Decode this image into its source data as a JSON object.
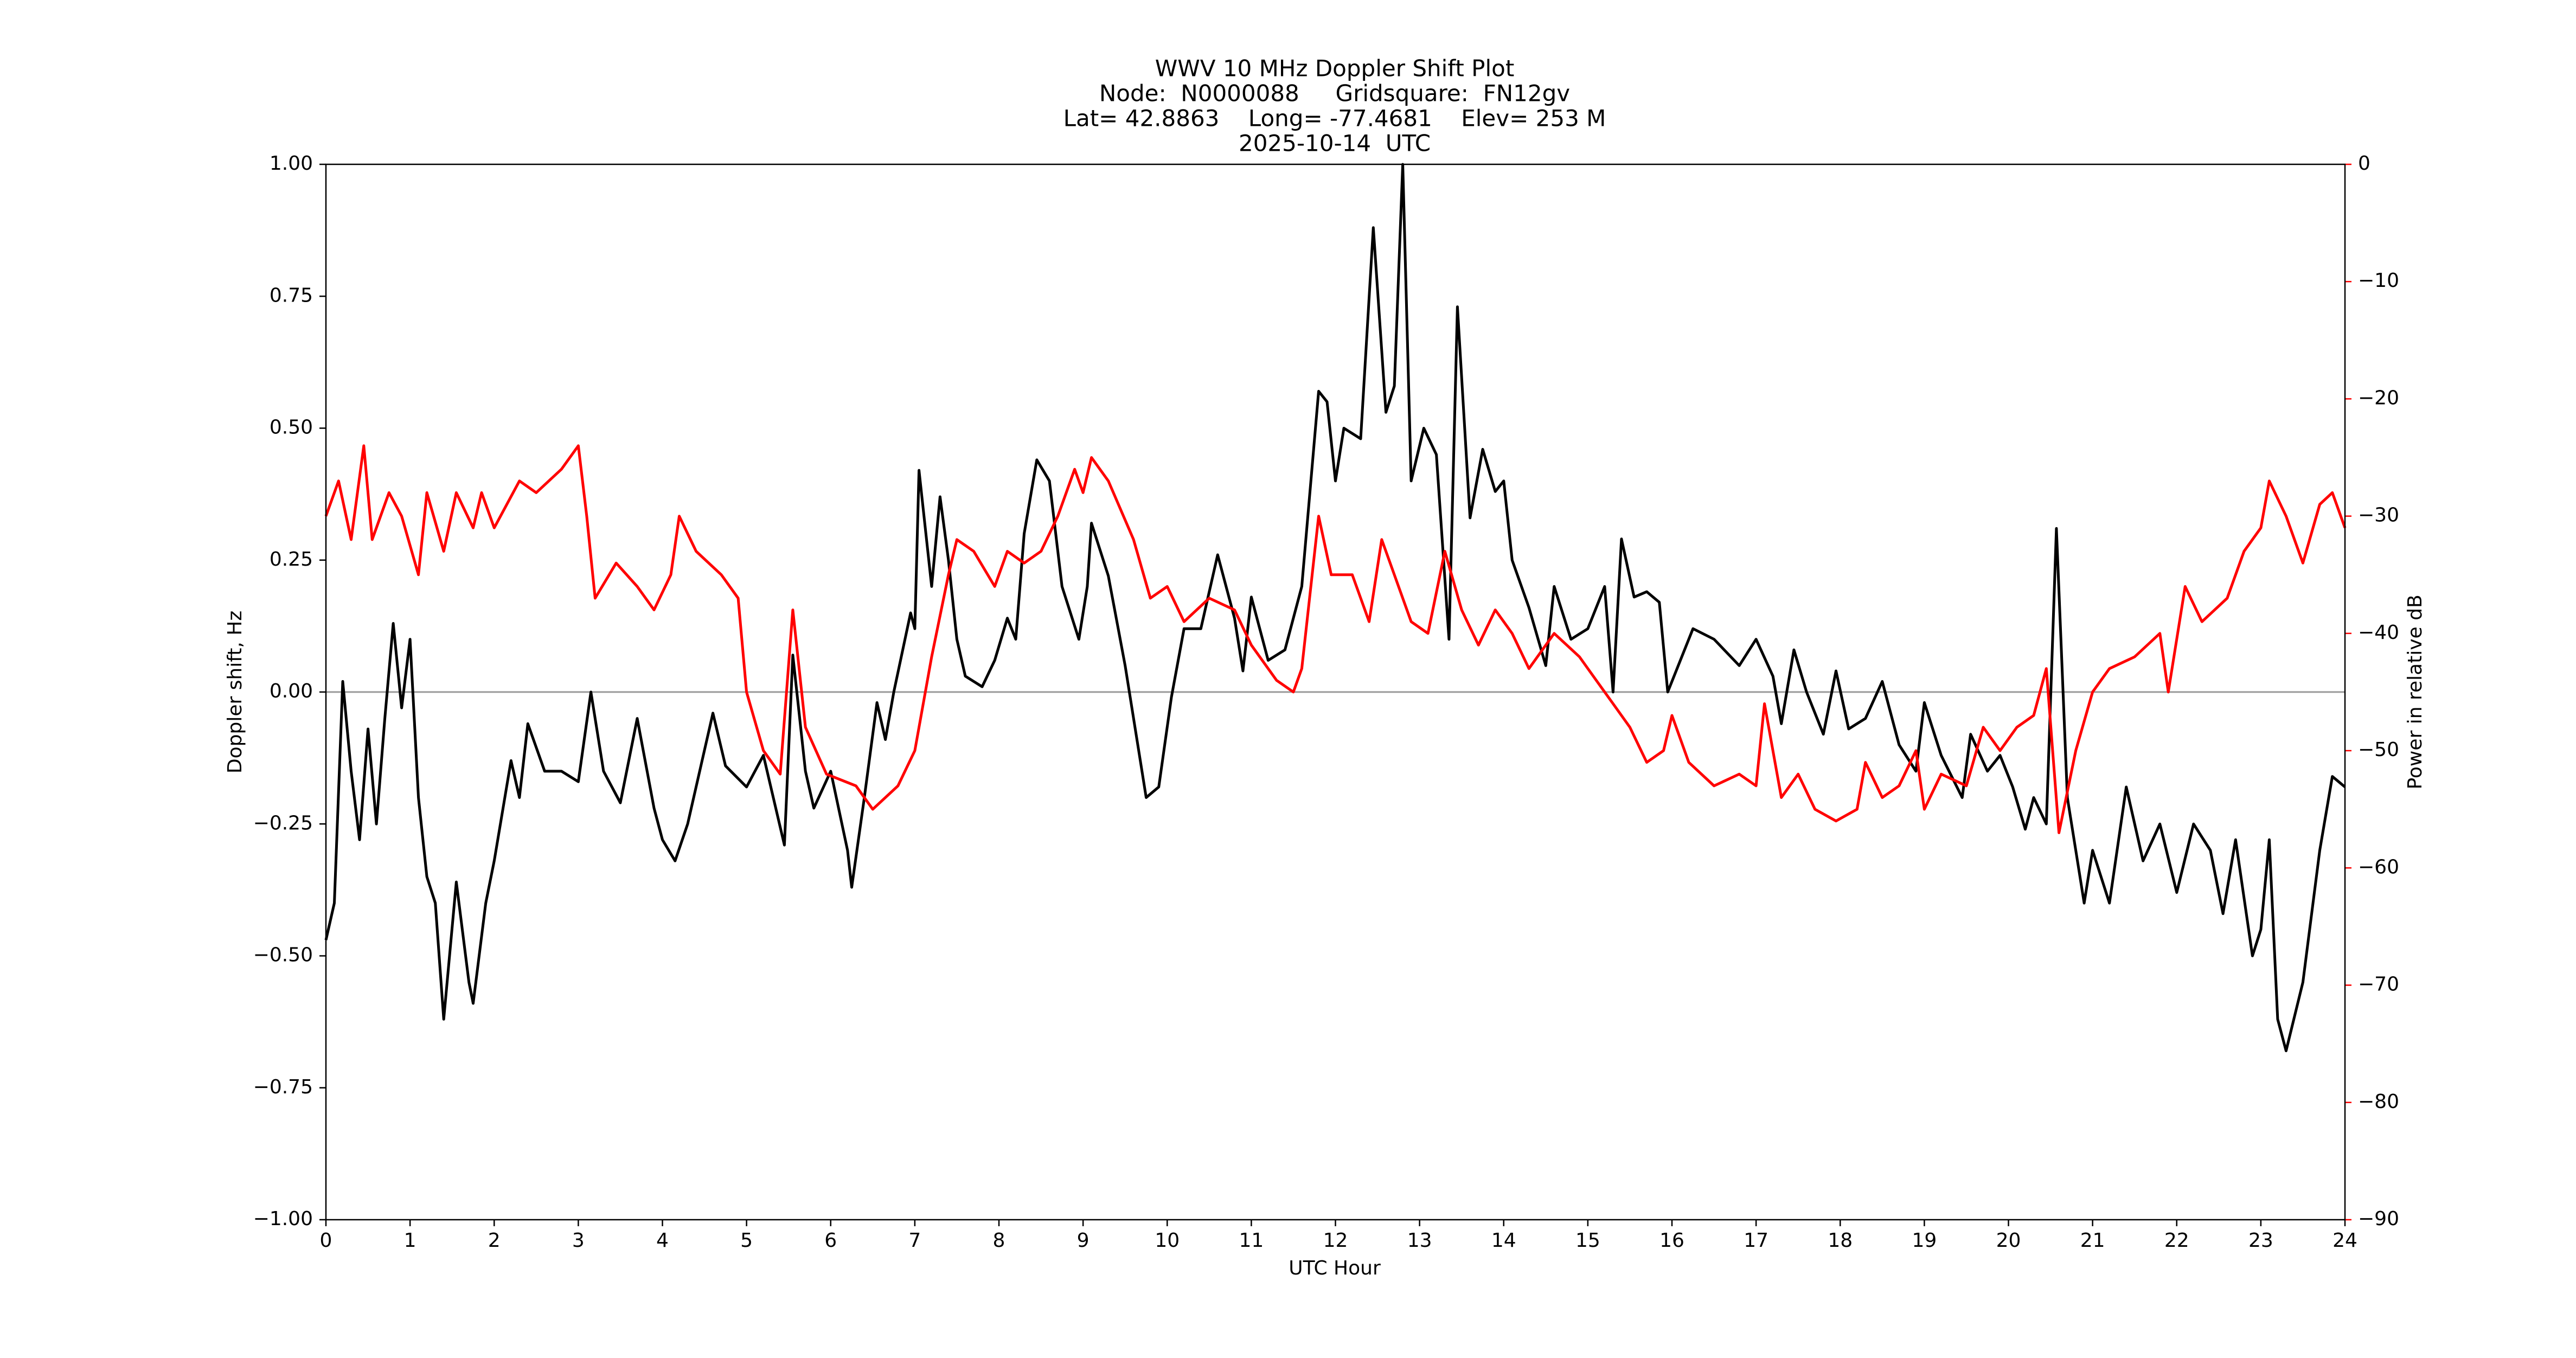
{
  "chart_data": {
    "type": "line",
    "title": [
      "WWV 10 MHz Doppler Shift Plot",
      "Node:  N0000088     Gridsquare:  FN12gv",
      "Lat= 42.8863    Long= -77.4681    Elev= 253 M",
      "2025-10-14  UTC"
    ],
    "xlabel": "UTC Hour",
    "ylabel": "Doppler shift, Hz",
    "y2label": "Power in relative dB",
    "y2color": "#ff0000",
    "xlim": [
      0,
      24
    ],
    "xticks": [
      0,
      1,
      2,
      3,
      4,
      5,
      6,
      7,
      8,
      9,
      10,
      11,
      12,
      13,
      14,
      15,
      16,
      17,
      18,
      19,
      20,
      21,
      22,
      23,
      24
    ],
    "ylim": [
      -1,
      1
    ],
    "yticks": [
      {
        "value": -1,
        "label": "−1.00"
      },
      {
        "value": -0.75,
        "label": "−0.75"
      },
      {
        "value": -0.5,
        "label": "−0.50"
      },
      {
        "value": -0.25,
        "label": "−0.25"
      },
      {
        "value": 0,
        "label": "0.00"
      },
      {
        "value": 0.25,
        "label": "0.25"
      },
      {
        "value": 0.5,
        "label": "0.50"
      },
      {
        "value": 0.75,
        "label": "0.75"
      },
      {
        "value": 1,
        "label": "1.00"
      }
    ],
    "y2lim": [
      -90,
      0
    ],
    "y2ticks": [
      {
        "value": -90,
        "label": "−90"
      },
      {
        "value": -80,
        "label": "−80"
      },
      {
        "value": -70,
        "label": "−70"
      },
      {
        "value": -60,
        "label": "−60"
      },
      {
        "value": -50,
        "label": "−50"
      },
      {
        "value": -40,
        "label": "−40"
      },
      {
        "value": -30,
        "label": "−30"
      },
      {
        "value": -20,
        "label": "−20"
      },
      {
        "value": -10,
        "label": "−10"
      },
      0
    ],
    "hline": 0,
    "hline_color": "#999999",
    "series": [
      {
        "color": "#000000",
        "axis": "y",
        "x": [
          0,
          0.1,
          0.2,
          0.3,
          0.4,
          0.5,
          0.6,
          0.7,
          0.8,
          0.9,
          1.0,
          1.1,
          1.2,
          1.3,
          1.4,
          1.55,
          1.7,
          1.75,
          1.9,
          2.0,
          2.2,
          2.3,
          2.4,
          2.6,
          2.8,
          3.0,
          3.15,
          3.3,
          3.5,
          3.7,
          3.9,
          4.0,
          4.15,
          4.3,
          4.6,
          4.75,
          5.0,
          5.2,
          5.45,
          5.55,
          5.7,
          5.8,
          6.0,
          6.2,
          6.25,
          6.4,
          6.55,
          6.65,
          6.75,
          6.95,
          7.0,
          7.05,
          7.2,
          7.3,
          7.4,
          7.5,
          7.6,
          7.8,
          7.95,
          8.1,
          8.2,
          8.3,
          8.45,
          8.6,
          8.75,
          8.95,
          9.05,
          9.1,
          9.3,
          9.5,
          9.65,
          9.75,
          9.9,
          10.05,
          10.2,
          10.4,
          10.6,
          10.8,
          10.9,
          11.0,
          11.2,
          11.4,
          11.6,
          11.8,
          11.9,
          12.0,
          12.1,
          12.3,
          12.45,
          12.6,
          12.7,
          12.8,
          12.9,
          13.05,
          13.2,
          13.35,
          13.45,
          13.6,
          13.75,
          13.9,
          14.0,
          14.1,
          14.3,
          14.5,
          14.6,
          14.8,
          15.0,
          15.2,
          15.3,
          15.4,
          15.55,
          15.7,
          15.85,
          15.95,
          16.1,
          16.25,
          16.5,
          16.8,
          17.0,
          17.2,
          17.3,
          17.45,
          17.6,
          17.8,
          17.95,
          18.1,
          18.3,
          18.5,
          18.7,
          18.9,
          19.0,
          19.2,
          19.45,
          19.55,
          19.75,
          19.9,
          20.05,
          20.2,
          20.3,
          20.45,
          20.57,
          20.7,
          20.9,
          21.0,
          21.2,
          21.4,
          21.6,
          21.8,
          22.0,
          22.2,
          22.4,
          22.55,
          22.7,
          22.9,
          23.0,
          23.1,
          23.2,
          23.3,
          23.5,
          23.7,
          23.85,
          24.0
        ],
        "values": [
          -0.47,
          -0.4,
          0.02,
          -0.15,
          -0.28,
          -0.07,
          -0.25,
          -0.05,
          0.13,
          -0.03,
          0.1,
          -0.2,
          -0.35,
          -0.4,
          -0.62,
          -0.36,
          -0.55,
          -0.59,
          -0.4,
          -0.32,
          -0.13,
          -0.2,
          -0.06,
          -0.15,
          -0.15,
          -0.17,
          0.0,
          -0.15,
          -0.21,
          -0.05,
          -0.22,
          -0.28,
          -0.32,
          -0.25,
          -0.04,
          -0.14,
          -0.18,
          -0.12,
          -0.29,
          0.07,
          -0.15,
          -0.22,
          -0.15,
          -0.3,
          -0.37,
          -0.2,
          -0.02,
          -0.09,
          0.0,
          0.15,
          0.12,
          0.42,
          0.2,
          0.37,
          0.25,
          0.1,
          0.03,
          0.01,
          0.06,
          0.14,
          0.1,
          0.3,
          0.44,
          0.4,
          0.2,
          0.1,
          0.2,
          0.32,
          0.22,
          0.05,
          -0.1,
          -0.2,
          -0.18,
          -0.01,
          0.12,
          0.12,
          0.26,
          0.14,
          0.04,
          0.18,
          0.06,
          0.08,
          0.2,
          0.57,
          0.55,
          0.4,
          0.5,
          0.48,
          0.88,
          0.53,
          0.58,
          1.0,
          0.4,
          0.5,
          0.45,
          0.1,
          0.73,
          0.33,
          0.46,
          0.38,
          0.4,
          0.25,
          0.16,
          0.05,
          0.2,
          0.1,
          0.12,
          0.2,
          0.0,
          0.29,
          0.18,
          0.19,
          0.17,
          0.0,
          0.06,
          0.12,
          0.1,
          0.05,
          0.1,
          0.03,
          -0.06,
          0.08,
          0.0,
          -0.08,
          0.04,
          -0.07,
          -0.05,
          0.02,
          -0.1,
          -0.15,
          -0.02,
          -0.12,
          -0.2,
          -0.08,
          -0.15,
          -0.12,
          -0.18,
          -0.26,
          -0.2,
          -0.25,
          0.31,
          -0.2,
          -0.4,
          -0.3,
          -0.4,
          -0.18,
          -0.32,
          -0.25,
          -0.38,
          -0.25,
          -0.3,
          -0.42,
          -0.28,
          -0.5,
          -0.45,
          -0.28,
          -0.62,
          -0.68,
          -0.55,
          -0.3,
          -0.16,
          -0.18
        ]
      },
      {
        "color": "#ff0000",
        "axis": "y2",
        "x": [
          0,
          0.15,
          0.3,
          0.45,
          0.55,
          0.75,
          0.9,
          1.1,
          1.2,
          1.4,
          1.55,
          1.75,
          1.85,
          2.0,
          2.3,
          2.5,
          2.8,
          3.0,
          3.1,
          3.2,
          3.45,
          3.7,
          3.9,
          4.1,
          4.2,
          4.4,
          4.7,
          4.9,
          5.0,
          5.2,
          5.4,
          5.55,
          5.7,
          5.95,
          6.3,
          6.5,
          6.8,
          7.0,
          7.2,
          7.4,
          7.5,
          7.7,
          7.95,
          8.1,
          8.3,
          8.5,
          8.7,
          8.9,
          9.0,
          9.1,
          9.3,
          9.6,
          9.8,
          10.0,
          10.2,
          10.5,
          10.8,
          11.0,
          11.3,
          11.5,
          11.6,
          11.8,
          11.95,
          12.2,
          12.4,
          12.55,
          12.7,
          12.9,
          13.1,
          13.3,
          13.5,
          13.7,
          13.9,
          14.1,
          14.3,
          14.6,
          14.9,
          15.1,
          15.3,
          15.5,
          15.7,
          15.9,
          16.0,
          16.2,
          16.5,
          16.8,
          17.0,
          17.1,
          17.3,
          17.5,
          17.7,
          17.95,
          18.2,
          18.3,
          18.5,
          18.7,
          18.9,
          19.0,
          19.2,
          19.5,
          19.7,
          19.9,
          20.1,
          20.3,
          20.45,
          20.6,
          20.8,
          21.0,
          21.2,
          21.5,
          21.8,
          21.9,
          22.1,
          22.3,
          22.6,
          22.8,
          23.0,
          23.1,
          23.3,
          23.5,
          23.7,
          23.85,
          24.0
        ],
        "values": [
          -30,
          -27,
          -32,
          -24,
          -32,
          -28,
          -30,
          -35,
          -28,
          -33,
          -28,
          -31,
          -28,
          -31,
          -27,
          -28,
          -26,
          -24,
          -30,
          -37,
          -34,
          -36,
          -38,
          -35,
          -30,
          -33,
          -35,
          -37,
          -45,
          -50,
          -52,
          -38,
          -48,
          -52,
          -53,
          -55,
          -53,
          -50,
          -42,
          -35,
          -32,
          -33,
          -36,
          -33,
          -34,
          -33,
          -30,
          -26,
          -28,
          -25,
          -27,
          -32,
          -37,
          -36,
          -39,
          -37,
          -38,
          -41,
          -44,
          -45,
          -43,
          -30,
          -35,
          -35,
          -39,
          -32,
          -35,
          -39,
          -40,
          -33,
          -38,
          -41,
          -38,
          -40,
          -43,
          -40,
          -42,
          -44,
          -46,
          -48,
          -51,
          -50,
          -47,
          -51,
          -53,
          -52,
          -53,
          -46,
          -54,
          -52,
          -55,
          -56,
          -55,
          -51,
          -54,
          -53,
          -50,
          -55,
          -52,
          -53,
          -48,
          -50,
          -48,
          -47,
          -43,
          -57,
          -50,
          -45,
          -43,
          -42,
          -40,
          -45,
          -36,
          -39,
          -37,
          -33,
          -31,
          -27,
          -30,
          -34,
          -29,
          -28,
          -31
        ]
      }
    ]
  }
}
